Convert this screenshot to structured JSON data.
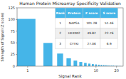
{
  "chart_data": {
    "type": "bar",
    "title": "Human Protein Microarray Specificity Validation",
    "xlabel": "Signal Rank",
    "ylabel": "Strength of Signal (Z score)",
    "x": [
      1,
      2,
      3,
      4,
      5,
      6,
      7,
      8,
      9,
      10,
      11,
      12,
      13,
      14,
      15,
      16,
      17,
      18,
      19,
      20,
      21,
      22,
      23,
      24,
      25
    ],
    "values": [
      101.28,
      49.82,
      27.06,
      17,
      12,
      9,
      7,
      5.5,
      4.5,
      3.8,
      3.2,
      2.8,
      2.4,
      2.1,
      1.9,
      1.7,
      1.5,
      1.3,
      1.1,
      0.9,
      0.7,
      0.5,
      0.3,
      0.2,
      0.1
    ],
    "color": "#45b5e8",
    "log": "x",
    "grid": false,
    "xlim": [
      0.7,
      25
    ],
    "xticks": [
      1,
      10,
      20
    ],
    "ylim": [
      0,
      125
    ],
    "yticks": [
      0,
      25,
      50,
      75,
      100,
      125
    ],
    "table": {
      "headers": [
        "Rank",
        "Protein",
        "Z score",
        "S score"
      ],
      "rows": [
        [
          "1",
          "NAPSA",
          "101.28",
          "51.46"
        ],
        [
          "2",
          "HEXIM2",
          "49.82",
          "22.76"
        ],
        [
          "3",
          "CYTKI",
          "27.06",
          "6.9"
        ]
      ]
    }
  }
}
